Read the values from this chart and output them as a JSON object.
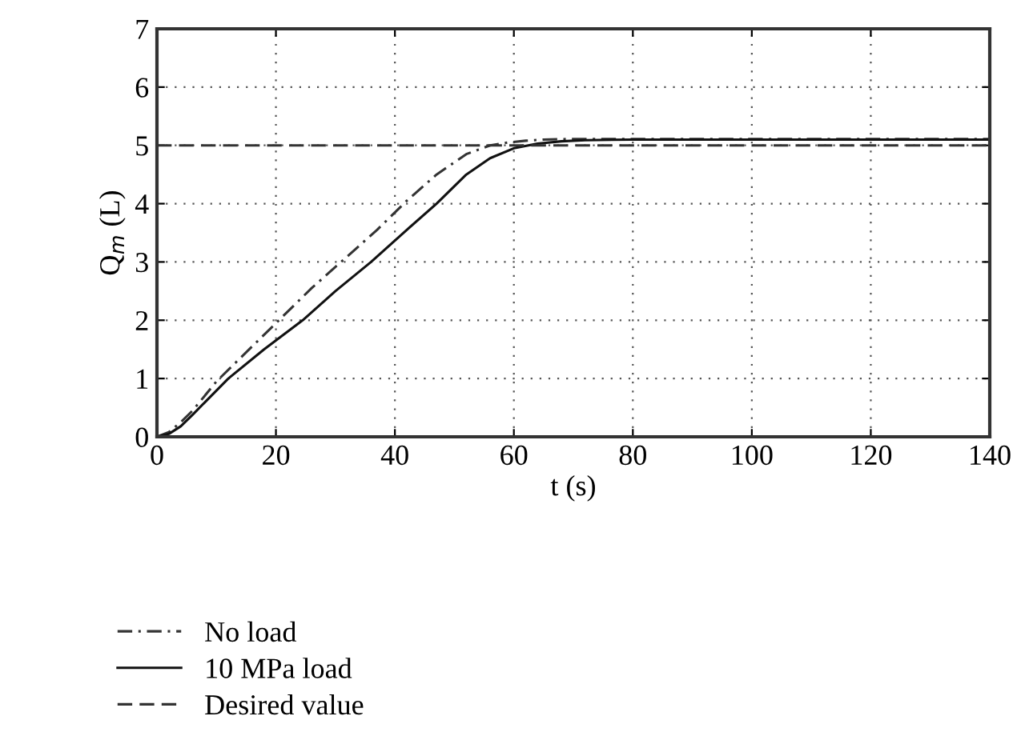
{
  "chart_data": {
    "type": "line",
    "xlabel": "t (s)",
    "ylabel": "Q$_{m}$ (L)",
    "xlim": [
      0,
      140
    ],
    "ylim": [
      0,
      7
    ],
    "xticks": [
      0,
      20,
      40,
      60,
      80,
      100,
      120,
      140
    ],
    "yticks": [
      0,
      1,
      2,
      3,
      4,
      5,
      6,
      7
    ],
    "grid": true,
    "legend": "bottom left",
    "series": [
      {
        "name": "No load",
        "color": "#333333",
        "line_style": "dashdot",
        "x": [
          0,
          2,
          4,
          6,
          10,
          15,
          21,
          26,
          31.5,
          37,
          42,
          47,
          52,
          56,
          59,
          62,
          65,
          70,
          80,
          100,
          140
        ],
        "values": [
          0,
          0.08,
          0.25,
          0.45,
          0.95,
          1.45,
          2.05,
          2.55,
          3.05,
          3.55,
          4.05,
          4.5,
          4.85,
          5.0,
          5.05,
          5.08,
          5.1,
          5.11,
          5.11,
          5.11,
          5.11
        ]
      },
      {
        "name": "10 MPa load",
        "color": "#111111",
        "line_style": "solid",
        "x": [
          0,
          2,
          4,
          6,
          12,
          18,
          24.5,
          30,
          36,
          42,
          47,
          52,
          56,
          60,
          64,
          68,
          72,
          80,
          100,
          140
        ],
        "values": [
          0,
          0.05,
          0.18,
          0.38,
          1.0,
          1.5,
          2.0,
          2.5,
          3.0,
          3.55,
          4.0,
          4.5,
          4.78,
          4.95,
          5.03,
          5.07,
          5.09,
          5.1,
          5.1,
          5.1
        ]
      },
      {
        "name": "Desired value",
        "color": "#333333",
        "line_style": "dashed",
        "x": [
          0,
          140
        ],
        "values": [
          5,
          5
        ]
      }
    ]
  }
}
